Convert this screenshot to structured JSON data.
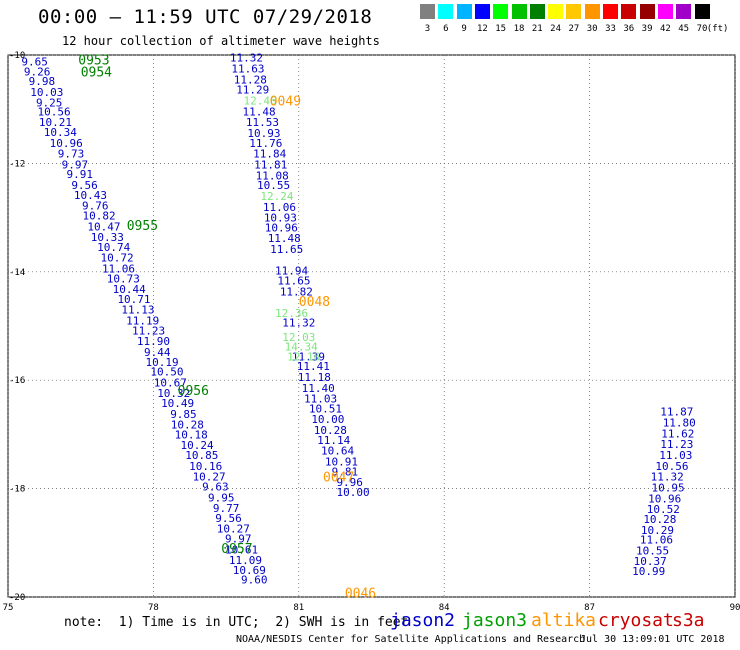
{
  "header": {
    "title": "00:00 – 11:59 UTC 07/29/2018",
    "subtitle": "12 hour collection of altimeter wave heights"
  },
  "scale": {
    "colors": [
      "#808080",
      "#00ffff",
      "#00b4ff",
      "#0000ff",
      "#00ff00",
      "#00c000",
      "#008000",
      "#ffff00",
      "#ffc800",
      "#ff9600",
      "#ff0000",
      "#c80000",
      "#960000",
      "#ff00ff",
      "#a000c8",
      "#000000"
    ],
    "labels": [
      "3",
      "6",
      "9",
      "12",
      "15",
      "18",
      "21",
      "24",
      "27",
      "30",
      "33",
      "36",
      "39",
      "42",
      "45",
      "70"
    ],
    "unit": "(ft)"
  },
  "chart_data": {
    "type": "scatter",
    "title": "00:00 – 11:59 UTC 07/29/2018",
    "xlim": [
      75,
      90
    ],
    "ylim": [
      -20,
      -10
    ],
    "x_ticks": [
      "75",
      "78",
      "81",
      "84",
      "87",
      "90"
    ],
    "y_ticks": [
      "-10",
      "-12",
      "-14",
      "-16",
      "-18",
      "-20"
    ],
    "grid": true,
    "series": [
      {
        "name": "jason2",
        "color": "#0000c8",
        "points": [
          [
            75.55,
            -10.12,
            "9.65"
          ],
          [
            75.6,
            -10.3,
            "9.26"
          ],
          [
            75.7,
            -10.48,
            "9.98"
          ],
          [
            75.8,
            -10.68,
            "10.03"
          ],
          [
            75.85,
            -10.88,
            "9.25"
          ],
          [
            75.95,
            -11.04,
            "10.56"
          ],
          [
            75.98,
            -11.24,
            "10.21"
          ],
          [
            76.08,
            -11.42,
            "10.34"
          ],
          [
            76.2,
            -11.62,
            "10.96"
          ],
          [
            76.3,
            -11.82,
            "9.73"
          ],
          [
            76.38,
            -12.02,
            "9.97"
          ],
          [
            76.48,
            -12.2,
            "9.91"
          ],
          [
            76.58,
            -12.4,
            "9.56"
          ],
          [
            76.7,
            -12.58,
            "10.43"
          ],
          [
            76.8,
            -12.78,
            "9.76"
          ],
          [
            76.88,
            -12.96,
            "10.82"
          ],
          [
            76.98,
            -13.16,
            "10.47"
          ],
          [
            77.05,
            -13.36,
            "10.33"
          ],
          [
            77.18,
            -13.54,
            "10.74"
          ],
          [
            77.25,
            -13.74,
            "10.72"
          ],
          [
            77.28,
            -13.94,
            "11.06"
          ],
          [
            77.38,
            -14.12,
            "10.73"
          ],
          [
            77.5,
            -14.32,
            "10.44"
          ],
          [
            77.6,
            -14.5,
            "10.71"
          ],
          [
            77.68,
            -14.7,
            "11.13"
          ],
          [
            77.78,
            -14.9,
            "11.19"
          ],
          [
            77.9,
            -15.08,
            "11.23"
          ],
          [
            78.0,
            -15.28,
            "11.90"
          ],
          [
            78.08,
            -15.48,
            "9.44"
          ],
          [
            78.18,
            -15.66,
            "10.19"
          ],
          [
            78.28,
            -15.84,
            "10.50"
          ],
          [
            78.35,
            -16.04,
            "10.67"
          ],
          [
            78.42,
            -16.24,
            "10.32"
          ],
          [
            78.5,
            -16.42,
            "10.49"
          ],
          [
            78.62,
            -16.62,
            "9.85"
          ],
          [
            78.7,
            -16.82,
            "10.28"
          ],
          [
            78.78,
            -17.0,
            "10.18"
          ],
          [
            78.9,
            -17.2,
            "10.24"
          ],
          [
            79.0,
            -17.38,
            "10.85"
          ],
          [
            79.08,
            -17.58,
            "10.16"
          ],
          [
            79.15,
            -17.78,
            "10.27"
          ],
          [
            79.28,
            -17.96,
            "9.63"
          ],
          [
            79.4,
            -18.16,
            "9.95"
          ],
          [
            79.5,
            -18.36,
            "9.77"
          ],
          [
            79.55,
            -18.54,
            "9.56"
          ],
          [
            79.65,
            -18.74,
            "10.27"
          ],
          [
            79.75,
            -18.92,
            "9.97"
          ],
          [
            79.82,
            -19.12,
            "10.61"
          ],
          [
            79.9,
            -19.32,
            "11.09"
          ],
          [
            79.98,
            -19.5,
            "10.69"
          ],
          [
            80.08,
            -19.68,
            "9.60"
          ],
          [
            79.92,
            -10.05,
            "11.32"
          ],
          [
            79.95,
            -10.25,
            "11.63"
          ],
          [
            80.0,
            -10.45,
            "11.28"
          ],
          [
            80.05,
            -10.64,
            "11.29"
          ],
          [
            80.18,
            -11.04,
            "11.48"
          ],
          [
            80.25,
            -11.24,
            "11.53"
          ],
          [
            80.28,
            -11.44,
            "10.93"
          ],
          [
            80.32,
            -11.62,
            "11.76"
          ],
          [
            80.4,
            -11.82,
            "11.84"
          ],
          [
            80.42,
            -12.02,
            "11.81"
          ],
          [
            80.45,
            -12.22,
            "11.08"
          ],
          [
            80.48,
            -12.4,
            "10.55"
          ],
          [
            80.6,
            -12.8,
            "11.06"
          ],
          [
            80.62,
            -13.0,
            "10.93"
          ],
          [
            80.64,
            -13.18,
            "10.96"
          ],
          [
            80.7,
            -13.38,
            "11.48"
          ],
          [
            80.75,
            -13.58,
            "11.65"
          ],
          [
            80.85,
            -13.98,
            "11.94"
          ],
          [
            80.9,
            -14.16,
            "11.65"
          ],
          [
            80.95,
            -14.36,
            "11.82"
          ],
          [
            81.0,
            -14.94,
            "11.32"
          ],
          [
            81.2,
            -15.56,
            "11.39"
          ],
          [
            81.3,
            -15.74,
            "11.41"
          ],
          [
            81.32,
            -15.94,
            "11.18"
          ],
          [
            81.4,
            -16.14,
            "11.40"
          ],
          [
            81.45,
            -16.34,
            "11.03"
          ],
          [
            81.55,
            -16.52,
            "10.51"
          ],
          [
            81.6,
            -16.72,
            "10.00"
          ],
          [
            81.65,
            -16.92,
            "10.28"
          ],
          [
            81.72,
            -17.1,
            "11.14"
          ],
          [
            81.8,
            -17.3,
            "10.64"
          ],
          [
            81.88,
            -17.5,
            "10.91"
          ],
          [
            81.95,
            -17.68,
            "9.81"
          ],
          [
            82.05,
            -17.88,
            "9.96"
          ],
          [
            82.12,
            -18.06,
            "10.00"
          ],
          [
            88.8,
            -16.58,
            "11.87"
          ],
          [
            88.85,
            -16.78,
            "11.80"
          ],
          [
            88.82,
            -16.98,
            "11.62"
          ],
          [
            88.8,
            -17.18,
            "11.23"
          ],
          [
            88.78,
            -17.38,
            "11.03"
          ],
          [
            88.7,
            -17.58,
            "10.56"
          ],
          [
            88.6,
            -17.78,
            "11.32"
          ],
          [
            88.62,
            -17.98,
            "10.95"
          ],
          [
            88.55,
            -18.18,
            "10.96"
          ],
          [
            88.52,
            -18.38,
            "10.52"
          ],
          [
            88.45,
            -18.56,
            "10.28"
          ],
          [
            88.4,
            -18.76,
            "10.29"
          ],
          [
            88.38,
            -18.94,
            "11.06"
          ],
          [
            88.3,
            -19.14,
            "10.55"
          ],
          [
            88.25,
            -19.34,
            "10.37"
          ],
          [
            88.22,
            -19.52,
            "10.99"
          ]
        ]
      },
      {
        "name": "jason3",
        "color": "#7de67d",
        "points": [
          [
            80.2,
            -10.84,
            "12.46"
          ],
          [
            80.55,
            -12.6,
            "12.24"
          ],
          [
            80.85,
            -14.76,
            "12.36"
          ],
          [
            81.0,
            -15.2,
            "12.03"
          ],
          [
            81.05,
            -15.38,
            "14.34"
          ],
          [
            81.1,
            -15.56,
            "12.16"
          ]
        ]
      }
    ],
    "orbit_labels": [
      {
        "text": "0953",
        "x": 76.45,
        "y": -10.08,
        "color": "#008000"
      },
      {
        "text": "0954",
        "x": 76.5,
        "y": -10.3,
        "color": "#008000"
      },
      {
        "text": "0955",
        "x": 77.45,
        "y": -13.14,
        "color": "#008000"
      },
      {
        "text": "0956",
        "x": 78.5,
        "y": -16.18,
        "color": "#008000"
      },
      {
        "text": "0957",
        "x": 79.4,
        "y": -19.1,
        "color": "#008000"
      },
      {
        "text": "0049",
        "x": 80.4,
        "y": -10.84,
        "color": "#ff9600"
      },
      {
        "text": "0048",
        "x": 81.0,
        "y": -14.54,
        "color": "#ff9600"
      },
      {
        "text": "0047",
        "x": 81.5,
        "y": -17.78,
        "color": "#ff9600"
      },
      {
        "text": "0046",
        "x": 81.95,
        "y": -19.92,
        "color": "#ff9600"
      }
    ]
  },
  "footer": {
    "note": "note:  1) Time is in UTC;  2) SWH is in feet",
    "satellites": [
      {
        "name": "jason2",
        "color": "#0000c8",
        "left": 390
      },
      {
        "name": "jason3",
        "color": "#00a000",
        "left": 462
      },
      {
        "name": "altika",
        "color": "#ff9600",
        "left": 531
      },
      {
        "name": "cryosat",
        "color": "#c80000",
        "left": 598
      },
      {
        "name": "s3a",
        "color": "#c80000",
        "left": 672
      }
    ],
    "credit": "NOAA/NESDIS Center for Satellite Applications and Research",
    "timestamp": "Jul 30 13:09:01 UTC 2018"
  }
}
